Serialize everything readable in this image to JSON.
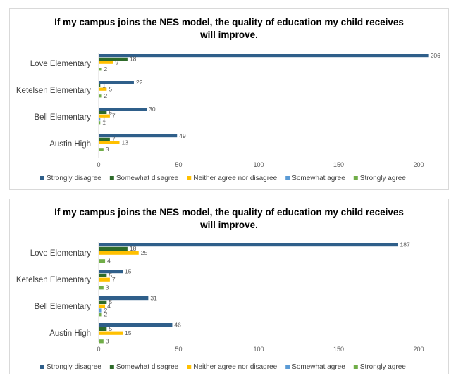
{
  "colors": {
    "strongly_disagree": "#2f5f8a",
    "somewhat_disagree": "#2e6b2a",
    "neither": "#ffc000",
    "somewhat_agree": "#5b9bd5",
    "strongly_agree": "#70ad47"
  },
  "chart_data": [
    {
      "type": "bar",
      "orientation": "horizontal",
      "title_lines": [
        "If my campus joins the NES model, the quality of education my child receives",
        "will improve."
      ],
      "categories": [
        "Love Elementary",
        "Ketelsen Elementary",
        "Bell Elementary",
        "Austin High"
      ],
      "series": [
        {
          "name": "Strongly disagree",
          "values": [
            206,
            22,
            30,
            49
          ]
        },
        {
          "name": "Somewhat disagree",
          "values": [
            18,
            1,
            5,
            7
          ]
        },
        {
          "name": "Neither agree nor disagree",
          "values": [
            9,
            5,
            7,
            13
          ]
        },
        {
          "name": "Somewhat agree",
          "values": [
            0,
            0,
            1,
            0
          ]
        },
        {
          "name": "Strongly agree",
          "values": [
            2,
            2,
            1,
            3
          ]
        }
      ],
      "xlim": [
        0,
        200
      ],
      "xticks": [
        "0",
        "50",
        "100",
        "150",
        "200"
      ],
      "legend_position": "bottom",
      "grid": false
    },
    {
      "type": "bar",
      "orientation": "horizontal",
      "title_lines": [
        "If my campus joins the NES model, the quality of education my child receives",
        "will improve."
      ],
      "categories": [
        "Love Elementary",
        "Ketelsen Elementary",
        "Bell Elementary",
        "Austin High"
      ],
      "series": [
        {
          "name": "Strongly disagree",
          "values": [
            187,
            15,
            31,
            46
          ]
        },
        {
          "name": "Somewhat disagree",
          "values": [
            18,
            5,
            5,
            5
          ]
        },
        {
          "name": "Neither agree nor disagree",
          "values": [
            25,
            7,
            4,
            15
          ]
        },
        {
          "name": "Somewhat agree",
          "values": [
            0,
            0,
            2,
            0
          ]
        },
        {
          "name": "Strongly agree",
          "values": [
            4,
            3,
            2,
            3
          ]
        }
      ],
      "xlim": [
        0,
        200
      ],
      "xticks": [
        "0",
        "50",
        "100",
        "150",
        "200"
      ],
      "legend_position": "bottom",
      "grid": false
    }
  ]
}
